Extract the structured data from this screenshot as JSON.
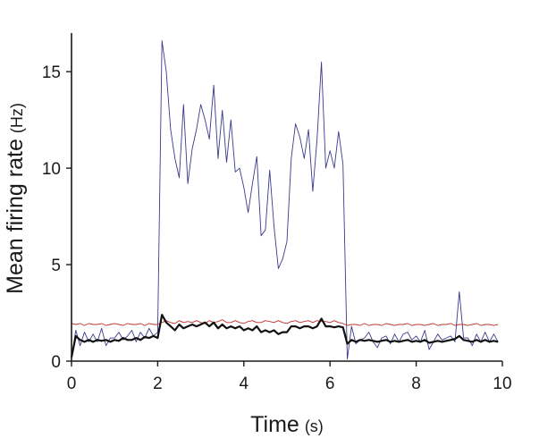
{
  "chart_data": {
    "type": "line",
    "title": "",
    "xlabel": "Time",
    "xlabel_unit": "(s)",
    "ylabel": "Mean firing rate",
    "ylabel_unit": "(Hz)",
    "xlim": [
      0,
      10
    ],
    "ylim": [
      0,
      17
    ],
    "xticks": [
      "0",
      "2",
      "4",
      "6",
      "8",
      "10"
    ],
    "yticks": [
      "0",
      "5",
      "10",
      "15"
    ],
    "grid": false,
    "legend": "none",
    "series": [
      {
        "color": "#3a3a8c",
        "width": 0.9,
        "x": [
          0,
          0.1,
          0.2,
          0.3,
          0.4,
          0.5,
          0.6,
          0.7,
          0.8,
          0.9,
          1.0,
          1.1,
          1.2,
          1.3,
          1.4,
          1.5,
          1.6,
          1.7,
          1.8,
          1.9,
          2.0,
          2.1,
          2.2,
          2.3,
          2.4,
          2.5,
          2.6,
          2.7,
          2.8,
          2.9,
          3.0,
          3.1,
          3.2,
          3.3,
          3.4,
          3.5,
          3.6,
          3.7,
          3.8,
          3.9,
          4.0,
          4.1,
          4.2,
          4.3,
          4.4,
          4.5,
          4.6,
          4.7,
          4.8,
          4.9,
          5.0,
          5.1,
          5.2,
          5.3,
          5.4,
          5.5,
          5.6,
          5.7,
          5.8,
          5.9,
          6.0,
          6.1,
          6.2,
          6.3,
          6.4,
          6.5,
          6.6,
          6.7,
          6.8,
          6.9,
          7.0,
          7.1,
          7.2,
          7.3,
          7.4,
          7.5,
          7.6,
          7.7,
          7.8,
          7.9,
          8.0,
          8.1,
          8.2,
          8.3,
          8.4,
          8.5,
          8.6,
          8.7,
          8.8,
          8.9,
          9.0,
          9.1,
          9.2,
          9.3,
          9.4,
          9.5,
          9.6,
          9.7,
          9.8,
          9.9
        ],
        "y": [
          0.2,
          1.6,
          0.8,
          1.5,
          1.0,
          1.4,
          1.0,
          1.7,
          0.8,
          1.2,
          1.2,
          1.5,
          1.1,
          1.3,
          1.6,
          1.0,
          1.5,
          1.2,
          1.7,
          1.3,
          1.5,
          16.6,
          15.0,
          12.0,
          10.5,
          9.5,
          13.3,
          9.2,
          11.0,
          12.0,
          13.3,
          12.5,
          11.5,
          14.3,
          10.5,
          13.0,
          10.3,
          12.5,
          9.8,
          10.0,
          9.0,
          7.7,
          9.2,
          10.6,
          6.5,
          6.8,
          9.9,
          7.0,
          4.8,
          5.3,
          6.2,
          10.5,
          12.3,
          11.6,
          10.5,
          12.0,
          8.8,
          11.5,
          15.5,
          10.0,
          10.9,
          10.0,
          11.9,
          10.2,
          0.1,
          1.8,
          0.9,
          1.1,
          1.2,
          1.5,
          1.0,
          0.7,
          1.2,
          1.3,
          0.9,
          1.4,
          1.0,
          1.4,
          1.5,
          1.1,
          1.3,
          1.0,
          1.6,
          0.6,
          1.0,
          1.4,
          1.1,
          1.2,
          1.3,
          1.0,
          3.6,
          1.2,
          1.2,
          0.8,
          1.4,
          1.0,
          1.5,
          1.0,
          1.4,
          1.0
        ]
      },
      {
        "color": "#c03030",
        "width": 0.9,
        "x": [
          0,
          0.1,
          0.2,
          0.3,
          0.4,
          0.5,
          0.6,
          0.7,
          0.8,
          0.9,
          1.0,
          1.1,
          1.2,
          1.3,
          1.4,
          1.5,
          1.6,
          1.7,
          1.8,
          1.9,
          2.0,
          2.1,
          2.2,
          2.3,
          2.4,
          2.5,
          2.6,
          2.7,
          2.8,
          2.9,
          3.0,
          3.1,
          3.2,
          3.3,
          3.4,
          3.5,
          3.6,
          3.7,
          3.8,
          3.9,
          4.0,
          4.1,
          4.2,
          4.3,
          4.4,
          4.5,
          4.6,
          4.7,
          4.8,
          4.9,
          5.0,
          5.1,
          5.2,
          5.3,
          5.4,
          5.5,
          5.6,
          5.7,
          5.8,
          5.9,
          6.0,
          6.1,
          6.2,
          6.3,
          6.4,
          6.5,
          6.6,
          6.7,
          6.8,
          6.9,
          7.0,
          7.1,
          7.2,
          7.3,
          7.4,
          7.5,
          7.6,
          7.7,
          7.8,
          7.9,
          8.0,
          8.1,
          8.2,
          8.3,
          8.4,
          8.5,
          8.6,
          8.7,
          8.8,
          8.9,
          9.0,
          9.1,
          9.2,
          9.3,
          9.4,
          9.5,
          9.6,
          9.7,
          9.8,
          9.9
        ],
        "y": [
          1.95,
          1.9,
          1.95,
          1.85,
          1.95,
          1.9,
          1.9,
          1.95,
          1.85,
          1.9,
          1.95,
          1.9,
          1.85,
          1.95,
          1.9,
          1.9,
          1.95,
          1.85,
          1.95,
          1.9,
          1.9,
          2.0,
          2.1,
          2.0,
          1.95,
          2.1,
          2.0,
          2.05,
          2.0,
          2.1,
          2.0,
          1.95,
          2.1,
          2.0,
          2.05,
          2.15,
          2.0,
          2.0,
          2.1,
          2.0,
          1.95,
          2.05,
          2.1,
          2.0,
          2.0,
          2.1,
          2.05,
          2.0,
          2.1,
          2.0,
          1.95,
          2.05,
          2.1,
          2.0,
          2.05,
          2.1,
          2.0,
          2.1,
          2.05,
          2.05,
          2.0,
          2.1,
          2.0,
          1.95,
          1.85,
          1.9,
          1.9,
          1.85,
          1.95,
          1.85,
          1.9,
          1.9,
          1.85,
          1.95,
          1.9,
          1.85,
          1.9,
          1.9,
          1.95,
          1.85,
          1.9,
          1.9,
          1.85,
          1.9,
          1.95,
          1.85,
          1.9,
          1.9,
          1.95,
          1.85,
          1.9,
          1.9,
          1.85,
          1.9,
          1.95,
          1.85,
          1.9,
          1.9,
          1.85,
          1.9
        ]
      },
      {
        "color": "#111111",
        "width": 2.2,
        "x": [
          0,
          0.1,
          0.2,
          0.3,
          0.4,
          0.5,
          0.6,
          0.7,
          0.8,
          0.9,
          1.0,
          1.1,
          1.2,
          1.3,
          1.4,
          1.5,
          1.6,
          1.7,
          1.8,
          1.9,
          2.0,
          2.1,
          2.2,
          2.3,
          2.4,
          2.5,
          2.6,
          2.7,
          2.8,
          2.9,
          3.0,
          3.1,
          3.2,
          3.3,
          3.4,
          3.5,
          3.6,
          3.7,
          3.8,
          3.9,
          4.0,
          4.1,
          4.2,
          4.3,
          4.4,
          4.5,
          4.6,
          4.7,
          4.8,
          4.9,
          5.0,
          5.1,
          5.2,
          5.3,
          5.4,
          5.5,
          5.6,
          5.7,
          5.8,
          5.9,
          6.0,
          6.1,
          6.2,
          6.3,
          6.4,
          6.5,
          6.6,
          6.7,
          6.8,
          6.9,
          7.0,
          7.1,
          7.2,
          7.3,
          7.4,
          7.5,
          7.6,
          7.7,
          7.8,
          7.9,
          8.0,
          8.1,
          8.2,
          8.3,
          8.4,
          8.5,
          8.6,
          8.7,
          8.8,
          8.9,
          9.0,
          9.1,
          9.2,
          9.3,
          9.4,
          9.5,
          9.6,
          9.7,
          9.8,
          9.9
        ],
        "y": [
          0.2,
          1.3,
          1.1,
          1.0,
          1.1,
          1.0,
          1.1,
          1.05,
          1.1,
          1.0,
          1.1,
          1.05,
          1.2,
          1.1,
          1.1,
          1.2,
          1.1,
          1.25,
          1.2,
          1.3,
          1.2,
          2.4,
          2.0,
          1.8,
          1.6,
          1.9,
          1.7,
          1.8,
          1.9,
          1.8,
          1.9,
          2.0,
          1.8,
          2.0,
          1.7,
          1.9,
          1.7,
          1.8,
          1.7,
          1.8,
          1.6,
          1.7,
          1.6,
          1.8,
          1.5,
          1.6,
          1.5,
          1.6,
          1.4,
          1.5,
          1.5,
          1.8,
          1.8,
          1.7,
          1.8,
          1.8,
          1.7,
          1.8,
          2.2,
          1.8,
          1.8,
          1.75,
          1.8,
          1.75,
          0.9,
          1.1,
          1.0,
          1.1,
          1.05,
          1.1,
          1.05,
          1.0,
          1.05,
          1.1,
          1.0,
          1.05,
          1.0,
          1.05,
          1.1,
          1.0,
          1.05,
          1.0,
          1.1,
          0.95,
          1.0,
          1.05,
          1.0,
          1.05,
          1.1,
          1.15,
          1.3,
          1.1,
          1.05,
          1.0,
          1.1,
          1.0,
          1.1,
          1.0,
          1.05,
          1.0
        ]
      }
    ]
  }
}
